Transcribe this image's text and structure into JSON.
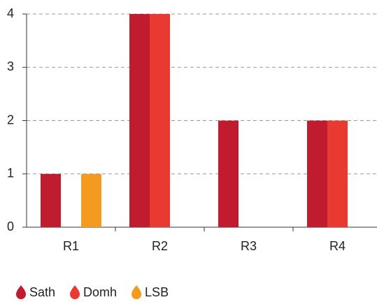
{
  "chart_data": {
    "type": "bar",
    "categories": [
      "R1",
      "R2",
      "R3",
      "R4"
    ],
    "series": [
      {
        "name": "Sath",
        "color": "#c11b30",
        "values": [
          1,
          4,
          2,
          2
        ]
      },
      {
        "name": "Domh",
        "color": "#e83a30",
        "values": [
          0,
          4,
          0,
          2
        ]
      },
      {
        "name": "LSB",
        "color": "#f39a1f",
        "values": [
          1,
          0,
          0,
          0
        ]
      }
    ],
    "ylim": [
      0,
      4
    ],
    "yticks": [
      0,
      1,
      2,
      3,
      4
    ],
    "grid": true,
    "legend": "bottom"
  }
}
